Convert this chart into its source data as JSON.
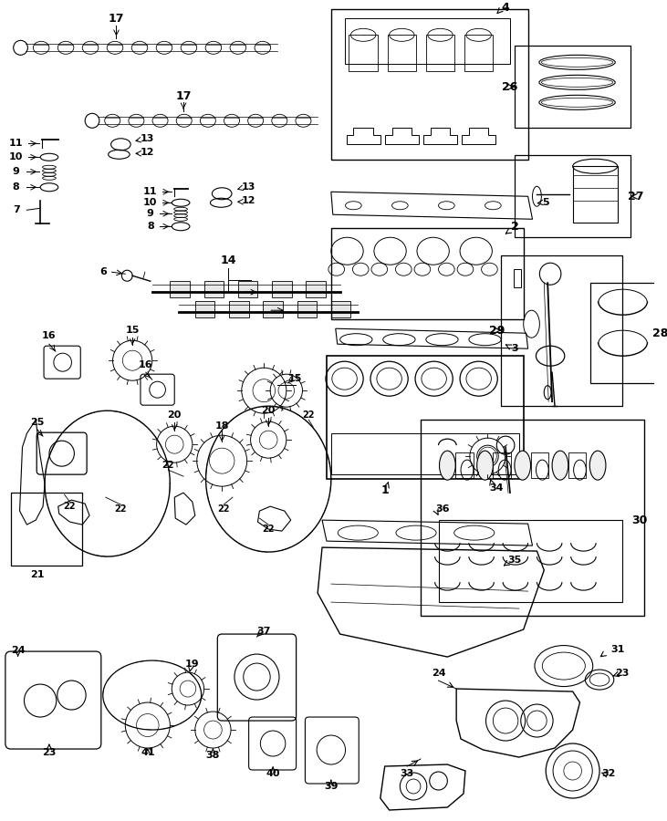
{
  "bg_color": "#ffffff",
  "lc": "#000000",
  "fig_w": 7.31,
  "fig_h": 9.0,
  "dpi": 100
}
